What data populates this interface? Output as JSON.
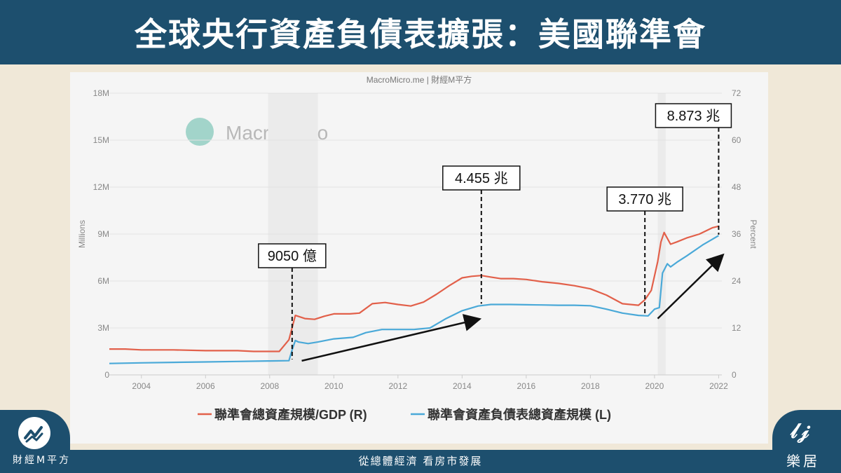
{
  "header": {
    "title": "全球央行資產負債表擴張：美國聯準會"
  },
  "footer": {
    "slogan": "從總體經濟 看房市發展",
    "left_brand": "財經M平方",
    "right_brand": "樂居"
  },
  "colors": {
    "gdp_line": "#e2604a",
    "assets_line": "#4aa9d8",
    "header_bg": "#1d4f6e",
    "panel_bg": "#f5f5f5"
  },
  "chart_data": {
    "type": "line",
    "source": "MacroMicro.me | 財經M平方",
    "watermark": "MacroMicro",
    "ylabel_left": "Millions",
    "ylabel_right": "Percent",
    "xlim": [
      2003,
      2022.1
    ],
    "ylim_left": [
      0,
      18
    ],
    "ylim_right": [
      0,
      72
    ],
    "x_ticks": [
      "2004",
      "2006",
      "2008",
      "2010",
      "2012",
      "2014",
      "2016",
      "2018",
      "2020",
      "2022"
    ],
    "y_ticks_left": [
      "0",
      "3M",
      "6M",
      "9M",
      "12M",
      "15M",
      "18M"
    ],
    "y_ticks_right": [
      "0",
      "12",
      "24",
      "36",
      "48",
      "60",
      "72"
    ],
    "legend_position": "bottom",
    "series": [
      {
        "name": "聯準會總資產規模/GDP (R)",
        "axis": "right",
        "x": [
          2003,
          2003.5,
          2004,
          2005,
          2006,
          2007,
          2007.5,
          2008,
          2008.3,
          2008.6,
          2008.8,
          2009.1,
          2009.4,
          2009.7,
          2010,
          2010.5,
          2010.8,
          2011.2,
          2011.6,
          2012,
          2012.4,
          2012.8,
          2013.2,
          2013.6,
          2014,
          2014.3,
          2014.6,
          2014.9,
          2015.2,
          2015.6,
          2016,
          2016.5,
          2017,
          2017.5,
          2018,
          2018.5,
          2019,
          2019.5,
          2019.7,
          2019.9,
          2020.1,
          2020.2,
          2020.3,
          2020.5,
          2020.7,
          2021,
          2021.4,
          2021.8,
          2022
        ],
        "values": [
          6.6,
          6.6,
          6.4,
          6.4,
          6.2,
          6.2,
          6.0,
          6.0,
          6.0,
          9.0,
          15.2,
          14.4,
          14.2,
          15.0,
          15.6,
          15.6,
          15.8,
          18.2,
          18.5,
          18.0,
          17.6,
          18.6,
          20.6,
          22.8,
          24.8,
          25.2,
          25.4,
          25.0,
          24.6,
          24.6,
          24.4,
          23.8,
          23.4,
          22.8,
          22.0,
          20.4,
          18.2,
          17.8,
          19.2,
          21.6,
          29.0,
          34.0,
          36.4,
          33.4,
          34.0,
          35.0,
          36.0,
          37.6,
          38.0
        ]
      },
      {
        "name": "聯準會資產負債表總資產規模 (L)",
        "axis": "left",
        "x": [
          2003,
          2004,
          2005,
          2006,
          2007,
          2008,
          2008.6,
          2008.7,
          2008.8,
          2008.9,
          2009.2,
          2009.5,
          2010,
          2010.6,
          2011,
          2011.5,
          2012,
          2012.5,
          2013,
          2013.5,
          2014,
          2014.5,
          2014.9,
          2015.5,
          2016,
          2016.5,
          2017,
          2017.5,
          2018,
          2018.5,
          2019,
          2019.5,
          2019.8,
          2020,
          2020.15,
          2020.25,
          2020.4,
          2020.5,
          2020.7,
          2021,
          2021.5,
          2022
        ],
        "values": [
          0.73,
          0.77,
          0.8,
          0.83,
          0.86,
          0.89,
          0.91,
          1.6,
          2.2,
          2.1,
          2.0,
          2.1,
          2.3,
          2.4,
          2.7,
          2.9,
          2.9,
          2.9,
          3.0,
          3.6,
          4.1,
          4.4,
          4.5,
          4.5,
          4.48,
          4.47,
          4.45,
          4.45,
          4.42,
          4.2,
          3.95,
          3.8,
          3.77,
          4.2,
          4.3,
          6.5,
          7.1,
          6.9,
          7.2,
          7.6,
          8.3,
          8.9
        ]
      }
    ],
    "annotations": [
      {
        "label": "9050 億",
        "x": 2008.7,
        "y": 0.905
      },
      {
        "label": "4.455 兆",
        "x": 2014.6,
        "y": 4.455
      },
      {
        "label": "3.770 兆",
        "x": 2019.7,
        "y": 3.77
      },
      {
        "label": "8.873 兆",
        "x": 2022.0,
        "y": 8.873
      }
    ],
    "arrows": [
      {
        "from": [
          2009.0,
          0.9
        ],
        "to": [
          2014.5,
          3.55
        ]
      },
      {
        "from": [
          2020.1,
          3.6
        ],
        "to": [
          2022.1,
          7.6
        ]
      }
    ]
  }
}
